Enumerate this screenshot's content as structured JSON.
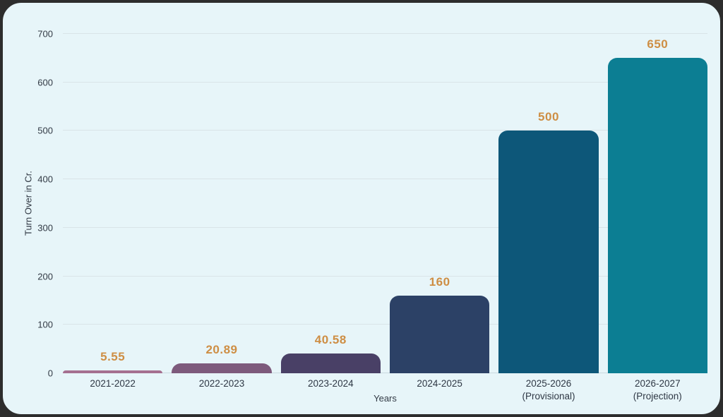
{
  "page": {
    "outer_background": "#2d2d2d",
    "card_background": "#e7f5f9"
  },
  "chart_data": {
    "type": "bar",
    "categories": [
      [
        "2021-2022"
      ],
      [
        "2022-2023"
      ],
      [
        "2023-2024"
      ],
      [
        "2024-2025"
      ],
      [
        "2025-2026",
        "(Provisional)"
      ],
      [
        "2026-2027",
        "(Projection)"
      ]
    ],
    "values": [
      5.55,
      20.89,
      40.58,
      160,
      500,
      650
    ],
    "value_labels": [
      "5.55",
      "20.89",
      "40.58",
      "160",
      "500",
      "650"
    ],
    "bar_colors": [
      "#a57090",
      "#7d5a7c",
      "#494066",
      "#2c4166",
      "#0d5779",
      "#0c7e93"
    ],
    "title": "",
    "xlabel": "Years",
    "ylabel": "Turn Over in Cr.",
    "ylim": [
      0,
      700
    ],
    "yticks": [
      0,
      100,
      200,
      300,
      400,
      500,
      600,
      700
    ],
    "grid": true,
    "legend": false,
    "value_label_color": "#ce8e44",
    "grid_color": "#d9e4e8",
    "tick_label_color": "#323a45"
  }
}
